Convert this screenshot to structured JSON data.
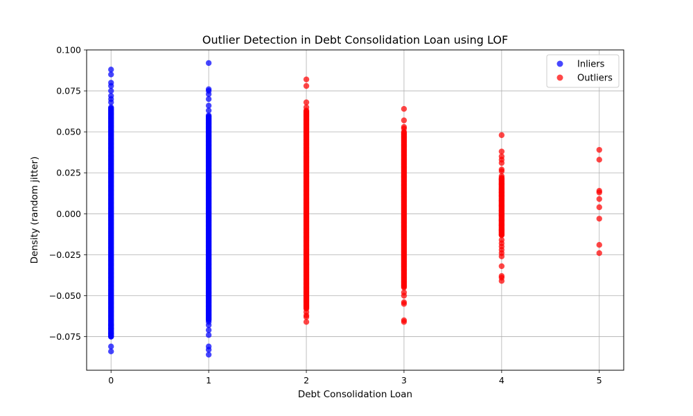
{
  "chart_data": {
    "type": "scatter",
    "title": "Outlier Detection in Debt Consolidation Loan using LOF",
    "xlabel": "Debt Consolidation Loan",
    "ylabel": "Density (random jitter)",
    "xlim": [
      -0.25,
      5.25
    ],
    "ylim": [
      -0.0955,
      0.1
    ],
    "x_ticks": [
      0,
      1,
      2,
      3,
      4,
      5
    ],
    "x_tick_labels": [
      "0",
      "1",
      "2",
      "3",
      "4",
      "5"
    ],
    "y_ticks": [
      -0.075,
      -0.05,
      -0.025,
      0.0,
      0.025,
      0.05,
      0.075,
      0.1
    ],
    "y_tick_labels": [
      "−0.075",
      "−0.050",
      "−0.025",
      "0.000",
      "0.025",
      "0.050",
      "0.075",
      "0.100"
    ],
    "grid": true,
    "legend_position": "top-right",
    "series": [
      {
        "name": "Inliers",
        "color": "#0000ff",
        "groups": [
          {
            "x": 0,
            "dense_range": [
              -0.075,
              0.065
            ],
            "points": [
              0.088,
              0.085,
              0.08,
              0.078,
              0.075,
              0.072,
              0.07,
              0.068,
              -0.068,
              -0.07,
              -0.073,
              -0.075,
              -0.081,
              -0.084
            ]
          },
          {
            "x": 1,
            "dense_range": [
              -0.065,
              0.06
            ],
            "points": [
              0.092,
              0.076,
              0.075,
              0.073,
              0.07,
              0.066,
              0.063,
              -0.066,
              -0.068,
              -0.071,
              -0.074,
              -0.081,
              -0.083,
              -0.086
            ]
          }
        ]
      },
      {
        "name": "Outliers",
        "color": "#ff0000",
        "groups": [
          {
            "x": 2,
            "dense_range": [
              -0.058,
              0.063
            ],
            "points": [
              0.082,
              0.078,
              0.068,
              0.065,
              -0.06,
              -0.062,
              -0.063,
              -0.066
            ]
          },
          {
            "x": 3,
            "dense_range": [
              -0.045,
              0.05
            ],
            "points": [
              0.064,
              0.057,
              0.053,
              0.052,
              -0.048,
              -0.05,
              -0.054,
              -0.055,
              -0.065,
              -0.066
            ]
          },
          {
            "x": 4,
            "dense_range": [
              -0.013,
              0.022
            ],
            "points": [
              0.048,
              0.038,
              0.035,
              0.033,
              0.031,
              0.027,
              0.026,
              0.023,
              0.021,
              0.018,
              0.015,
              0.013,
              0.011,
              0.008,
              0.005,
              0.002,
              -0.001,
              -0.004,
              -0.007,
              -0.01,
              -0.013,
              -0.016,
              -0.018,
              -0.02,
              -0.022,
              -0.024,
              -0.026,
              -0.032,
              -0.038,
              -0.039,
              -0.041
            ]
          },
          {
            "x": 5,
            "dense_range": null,
            "points": [
              0.039,
              0.033,
              0.014,
              0.013,
              0.009,
              0.004,
              -0.003,
              -0.019,
              -0.024
            ]
          }
        ]
      }
    ]
  }
}
